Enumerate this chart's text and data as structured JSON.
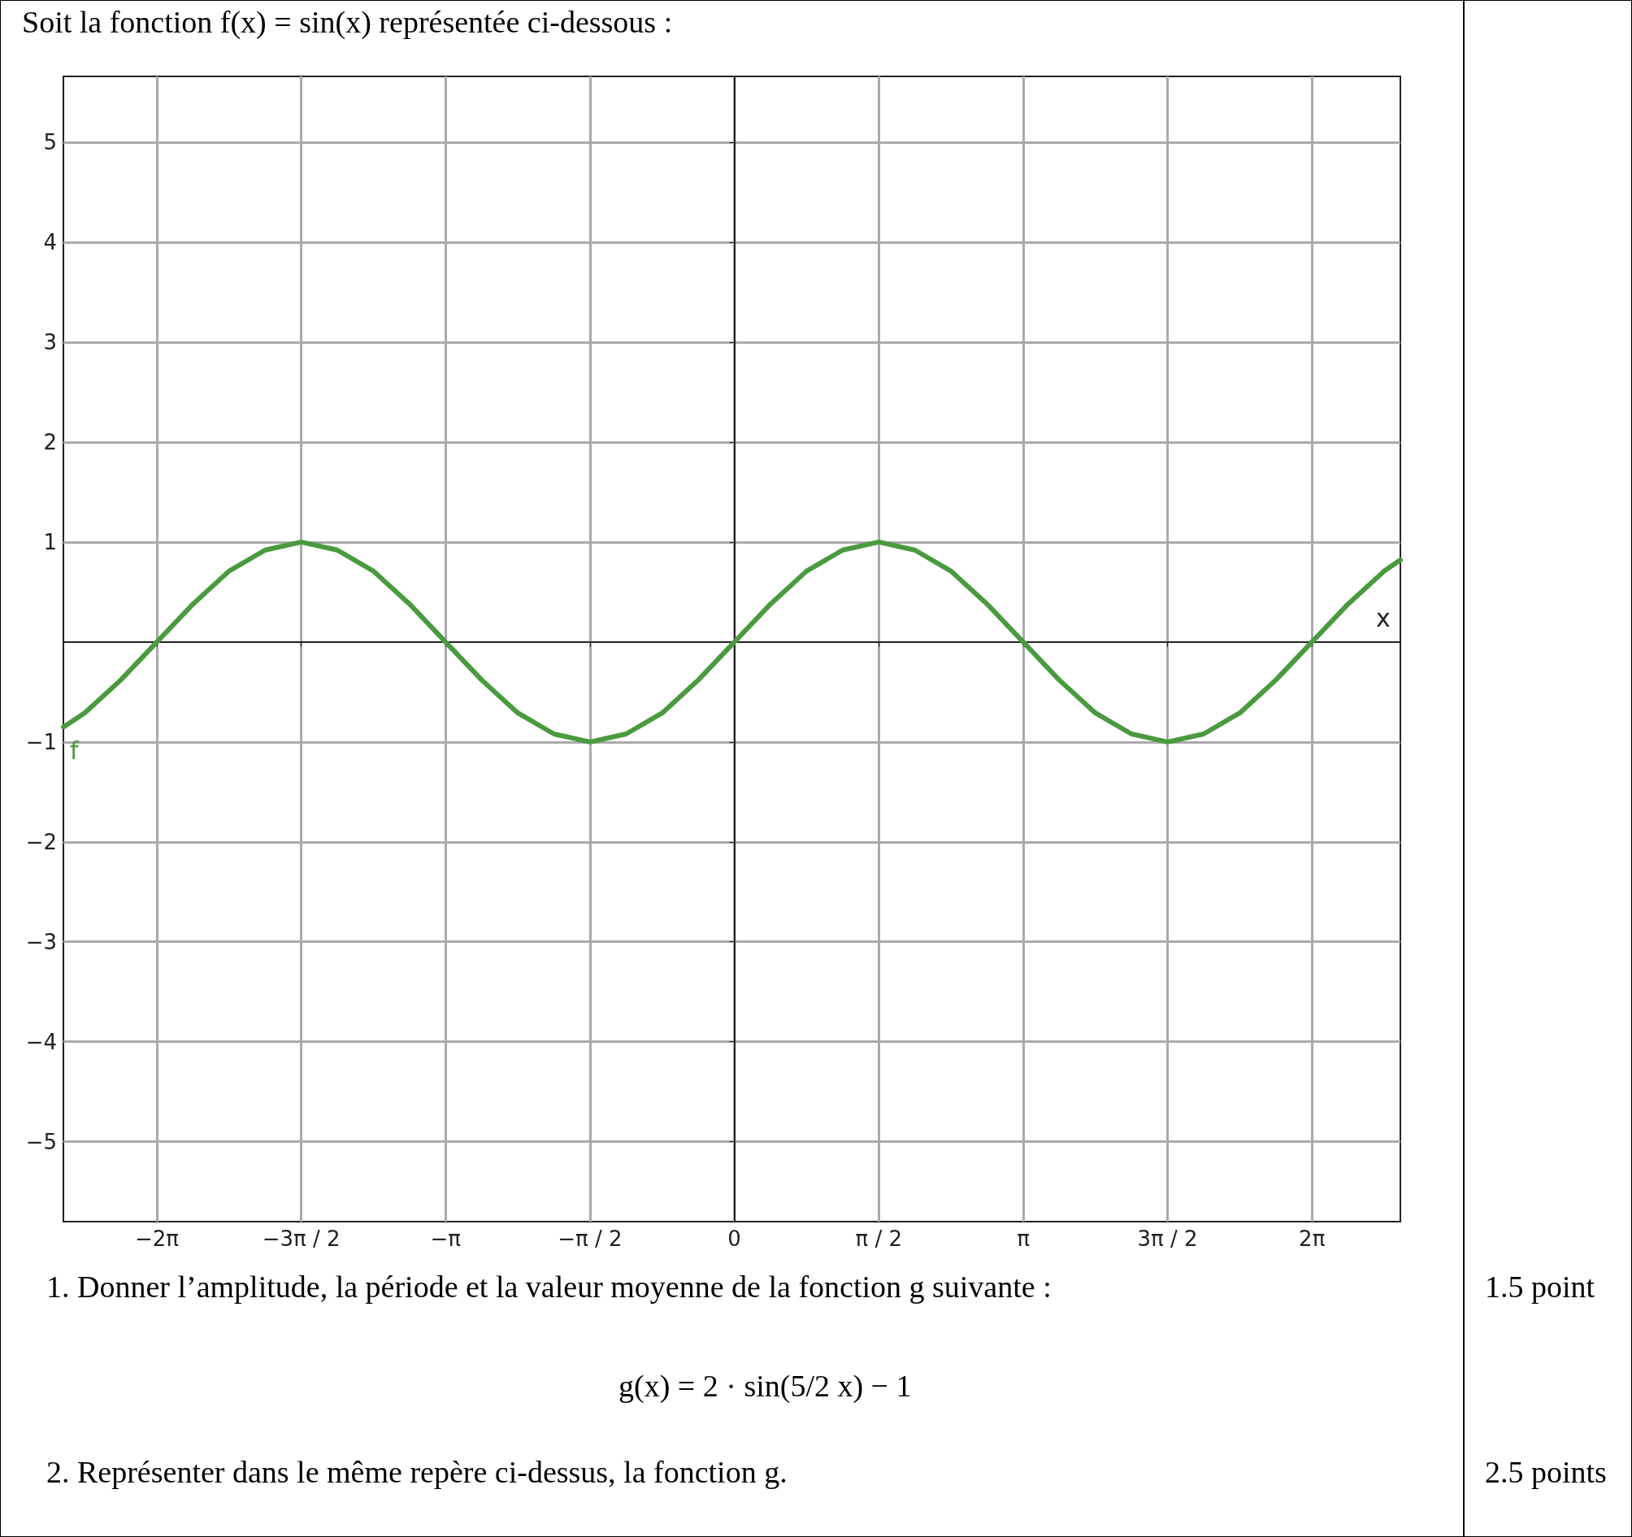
{
  "chart_data": {
    "type": "line",
    "title": "Soit la fonction f(x) = sin(x) représentée ci-dessous :",
    "xlabel": "x",
    "xlim": [
      -7.3,
      7.245
    ],
    "ylim": [
      -5.8,
      5.66
    ],
    "xticks": [
      {
        "value": -6.283,
        "label": "−2π"
      },
      {
        "value": -4.712,
        "label": "−3π / 2"
      },
      {
        "value": -3.142,
        "label": "−π"
      },
      {
        "value": -1.571,
        "label": "−π / 2"
      },
      {
        "value": 0,
        "label": "0"
      },
      {
        "value": 1.571,
        "label": "π / 2"
      },
      {
        "value": 3.142,
        "label": "π"
      },
      {
        "value": 4.712,
        "label": "3π / 2"
      },
      {
        "value": 6.283,
        "label": "2π"
      }
    ],
    "yticks": [
      {
        "value": -5,
        "label": "−5"
      },
      {
        "value": -4,
        "label": "−4"
      },
      {
        "value": -3,
        "label": "−3"
      },
      {
        "value": -2,
        "label": "−2"
      },
      {
        "value": -1,
        "label": "−1"
      },
      1,
      2,
      3,
      4,
      5
    ],
    "grid": true,
    "marker": "none",
    "line_style": "solid",
    "series": [
      {
        "name": "f",
        "color": "#4a9a3f",
        "x": [
          -7.3,
          -7.069,
          -6.676,
          -6.283,
          -5.89,
          -5.498,
          -5.105,
          -4.712,
          -4.32,
          -3.927,
          -3.534,
          -3.142,
          -2.749,
          -2.356,
          -1.963,
          -1.571,
          -1.178,
          -0.785,
          -0.393,
          0,
          0.393,
          0.785,
          1.178,
          1.571,
          1.963,
          2.356,
          2.749,
          3.142,
          3.534,
          3.927,
          4.32,
          4.712,
          5.105,
          5.498,
          5.89,
          6.283,
          6.676,
          7.069,
          7.245
        ],
        "values": [
          -0.85,
          -0.71,
          -0.38,
          0,
          0.38,
          0.71,
          0.92,
          1,
          0.92,
          0.71,
          0.38,
          0,
          -0.38,
          -0.71,
          -0.92,
          -1,
          -0.92,
          -0.71,
          -0.38,
          0,
          0.38,
          0.71,
          0.92,
          1,
          0.92,
          0.71,
          0.38,
          0,
          -0.38,
          -0.71,
          -0.92,
          -1,
          -0.92,
          -0.71,
          -0.38,
          0,
          0.38,
          0.71,
          0.82
        ]
      }
    ],
    "annotations": [
      "1.  Donner l’amplitude, la période et la valeur moyenne de la fonction g suivante :",
      "g(x) = 2 · sin(5/2 x) − 1",
      "2.  Représenter dans le même repère ci-dessus, la fonction g.",
      "1.5 point",
      "2.5 points"
    ]
  }
}
